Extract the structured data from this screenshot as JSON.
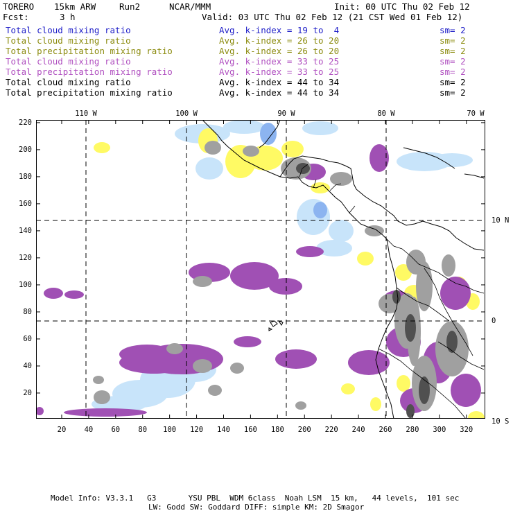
{
  "header": {
    "model": "TORERO",
    "resolution": "15km ARW",
    "run": "Run2",
    "org": "NCAR/MMM",
    "init": "Init: 00 UTC Thu 02 Feb 12",
    "fcst_label": "Fcst:",
    "fcst_value": "3 h",
    "valid": "Valid: 03 UTC Thu 02 Feb 12 (21 CST Wed 01 Feb 12)"
  },
  "legend": [
    {
      "field": "Total cloud mixing ratio",
      "kindex": "Avg. k-index = 19 to  4",
      "sm": "sm= 2",
      "color": "#2020c8"
    },
    {
      "field": "Total cloud mixing ratio",
      "kindex": "Avg. k-index = 26 to 20",
      "sm": "sm= 2",
      "color": "#8c8c10"
    },
    {
      "field": "Total precipitation mixing ratio",
      "kindex": "Avg. k-index = 26 to 20",
      "sm": "sm= 2",
      "color": "#8c8c10"
    },
    {
      "field": "Total cloud mixing ratio",
      "kindex": "Avg. k-index = 33 to 25",
      "sm": "sm= 2",
      "color": "#b050c0"
    },
    {
      "field": "Total precipitation mixing ratio",
      "kindex": "Avg. k-index = 33 to 25",
      "sm": "sm= 2",
      "color": "#b050c0"
    },
    {
      "field": "Total cloud mixing ratio",
      "kindex": "Avg. k-index = 44 to 34",
      "sm": "sm= 2",
      "color": "#000000"
    },
    {
      "field": "Total precipitation mixing ratio",
      "kindex": "Avg. k-index = 44 to 34",
      "sm": "sm= 2",
      "color": "#000000"
    }
  ],
  "map": {
    "top_lon_labels": [
      "110 W",
      "100 W",
      "90 W",
      "80 W",
      "70 W"
    ],
    "right_lat_labels": [
      "10 N",
      "0",
      "10 S"
    ],
    "x_ticks": [
      "20",
      "40",
      "60",
      "80",
      "100",
      "120",
      "140",
      "160",
      "180",
      "200",
      "220",
      "240",
      "260",
      "280",
      "300",
      "320"
    ],
    "y_ticks": [
      "220",
      "200",
      "180",
      "160",
      "140",
      "120",
      "100",
      "80",
      "60",
      "40",
      "20"
    ],
    "x_range": [
      1,
      334
    ],
    "y_range": [
      1,
      222
    ],
    "colors": {
      "blue": "#c8e4fa",
      "blue_dark": "#8cb4f0",
      "yellow": "#fffa64",
      "purple": "#a050b4",
      "gray": "#a0a0a0",
      "dark": "#505050"
    }
  },
  "footer": {
    "line1": "Model Info: V3.3.1   G3       YSU PBL  WDM 6class  Noah LSM  15 km,   44 levels,  101 sec",
    "line2": "LW: Godd SW: Goddard DIFF: simple KM: 2D Smagor"
  }
}
